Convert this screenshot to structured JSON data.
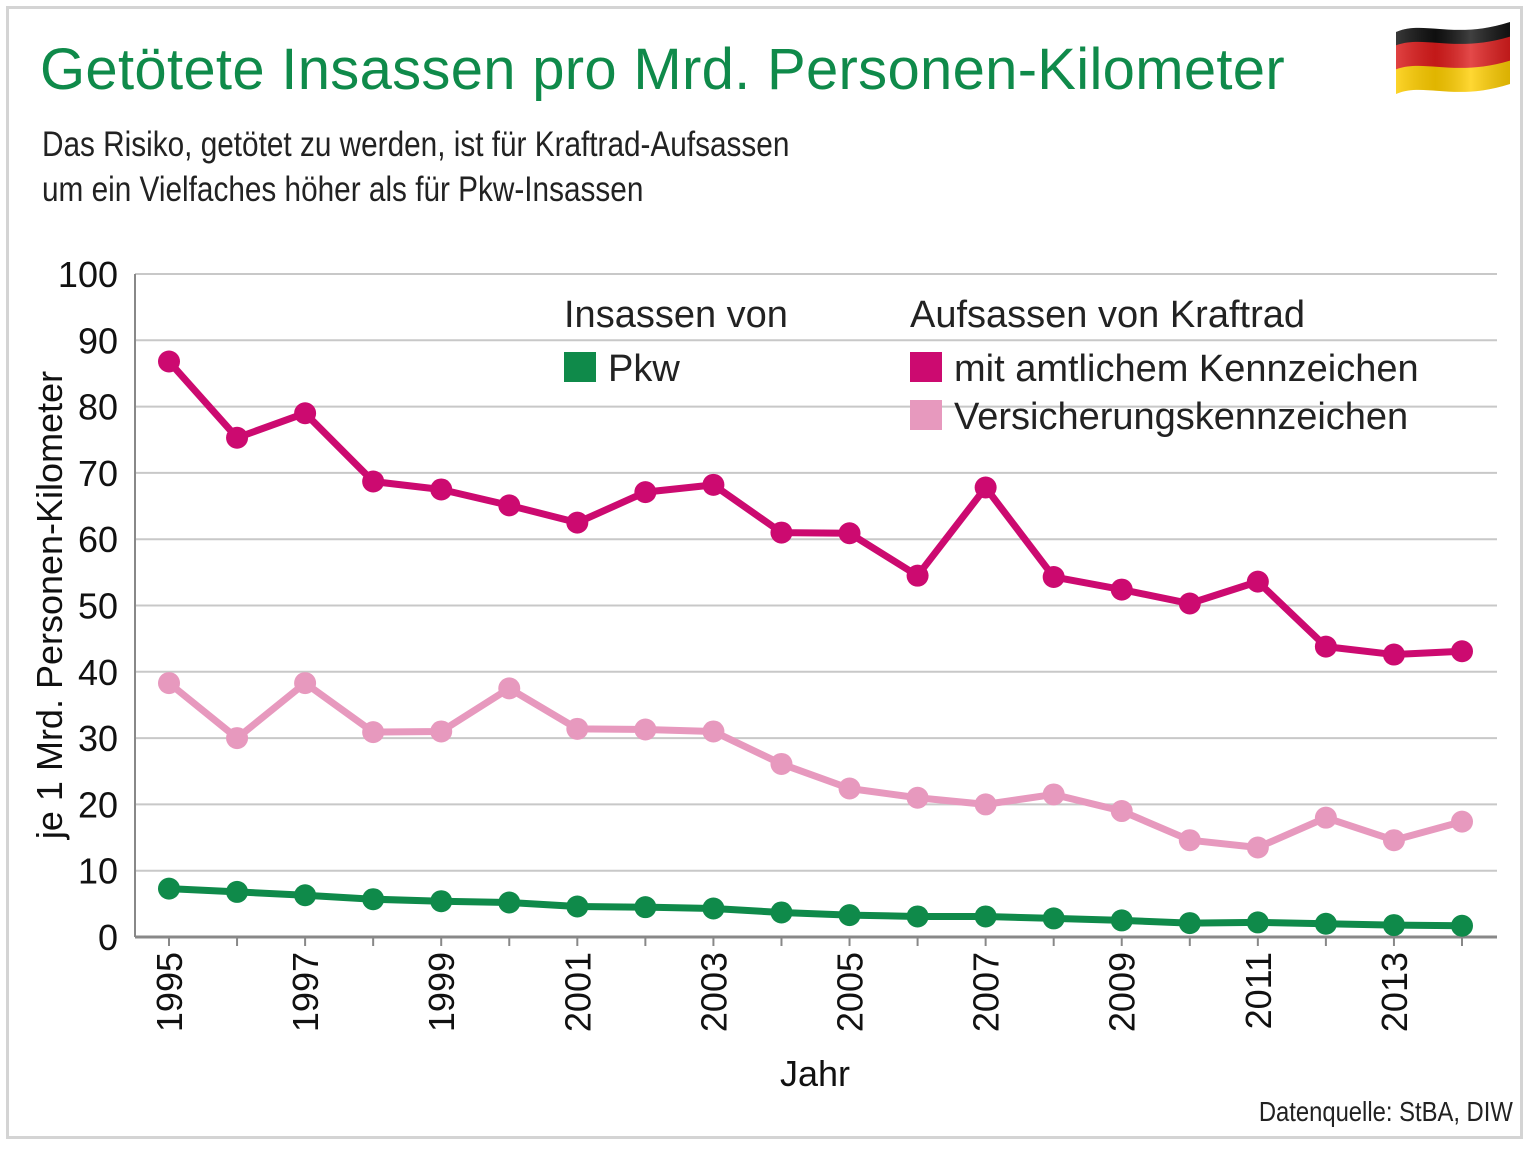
{
  "title": "Getötete Insassen pro Mrd. Personen-Kilometer",
  "subtitle": {
    "line1": "Das Risiko, getötet zu werden, ist für Kraftrad-Aufsassen",
    "line2": "um ein Vielfaches höher als für Pkw-Insassen"
  },
  "source": "Datenquelle: StBA, DIW",
  "flag_icon": "germany-flag-icon",
  "colors": {
    "title": "#0f8a4a",
    "pkw": "#0f8a4a",
    "kennzeichen": "#cc0a70",
    "versicherung": "#e799be",
    "grid": "#c8c8c8"
  },
  "legend": {
    "group1_title": "Insassen von",
    "group2_title": "Aufsassen von Kraftrad"
  },
  "chart_data": {
    "type": "line",
    "title": "Getötete Insassen pro Mrd. Personen-Kilometer",
    "xlabel": "Jahr",
    "ylabel": "je 1 Mrd. Personen-Kilometer",
    "ylim": [
      0,
      100
    ],
    "yticks": [
      "0",
      "10",
      "20",
      "30",
      "40",
      "50",
      "60",
      "70",
      "80",
      "90",
      "100"
    ],
    "xtick_labels": [
      "1995",
      "1997",
      "1999",
      "2001",
      "2003",
      "2005",
      "2007",
      "2009",
      "2011",
      "2013"
    ],
    "x": [
      1995,
      1996,
      1997,
      1998,
      1999,
      2000,
      2001,
      2002,
      2003,
      2004,
      2005,
      2006,
      2007,
      2008,
      2009,
      2010,
      2011,
      2012,
      2013,
      2014
    ],
    "grid": true,
    "series": [
      {
        "key": "kennzeichen",
        "name": "mit amtlichem Kennzeichen",
        "values": [
          86.8,
          75.3,
          79.0,
          68.7,
          67.5,
          65.1,
          62.5,
          67.1,
          68.2,
          61.0,
          60.9,
          54.5,
          67.8,
          54.3,
          52.4,
          50.3,
          53.6,
          43.8,
          42.6,
          43.1
        ]
      },
      {
        "key": "versicherung",
        "name": "Versicherungskennzeichen",
        "values": [
          38.3,
          30.0,
          38.3,
          30.9,
          31.0,
          37.5,
          31.4,
          31.3,
          31.0,
          26.1,
          22.4,
          21.0,
          20.0,
          21.5,
          19.0,
          14.6,
          13.5,
          18.0,
          14.6,
          17.4
        ]
      },
      {
        "key": "pkw",
        "name": "Pkw",
        "values": [
          7.3,
          6.8,
          6.3,
          5.7,
          5.4,
          5.2,
          4.6,
          4.5,
          4.3,
          3.7,
          3.3,
          3.1,
          3.1,
          2.8,
          2.5,
          2.1,
          2.2,
          2.0,
          1.8,
          1.7
        ]
      }
    ]
  }
}
